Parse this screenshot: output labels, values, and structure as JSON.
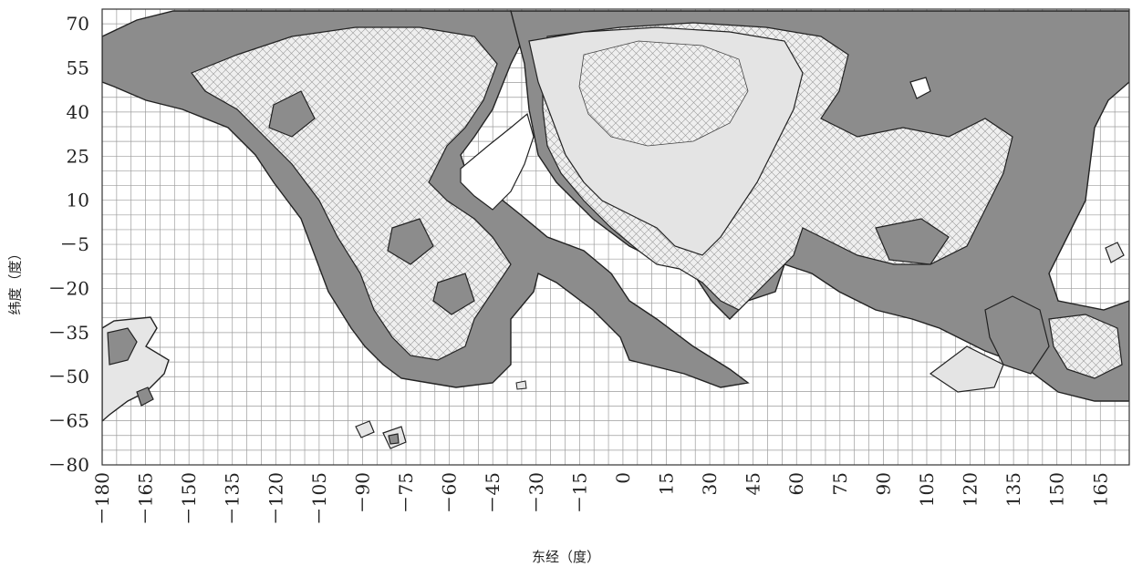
{
  "chart_data": {
    "type": "heatmap",
    "title": "",
    "xlabel": "东经（度）",
    "ylabel": "纬度（度）",
    "x_ticks": [
      "－180",
      "－165",
      "－150",
      "－135",
      "－120",
      "－105",
      "－90",
      "－75",
      "－60",
      "－45",
      "－30",
      "－15",
      "0",
      "15",
      "30",
      "45",
      "60",
      "75",
      "90",
      "105",
      "120",
      "135",
      "150",
      "165"
    ],
    "y_ticks": [
      "70",
      "55",
      "40",
      "25",
      "10",
      "－5",
      "－20",
      "－35",
      "－50",
      "－65",
      "－80"
    ],
    "xlim": [
      -180,
      175
    ],
    "ylim": [
      -80,
      75
    ],
    "grid": true,
    "regions": [
      {
        "name": "light",
        "color": "#e6e6e6"
      },
      {
        "name": "hatched",
        "color": "#ececec"
      },
      {
        "name": "dark",
        "color": "#8e8e8e"
      }
    ]
  }
}
